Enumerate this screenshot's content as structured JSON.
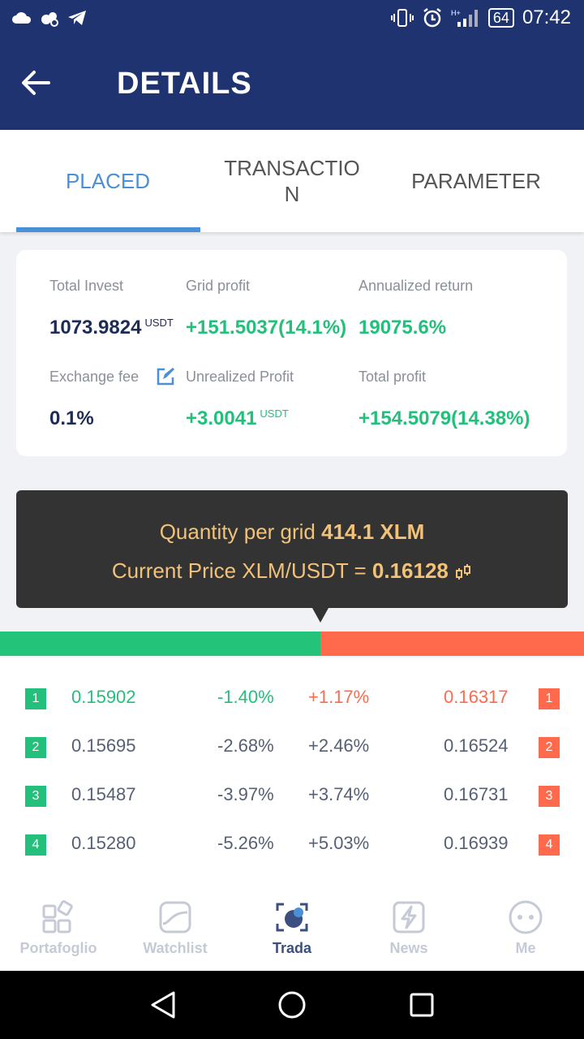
{
  "status_bar": {
    "battery": "64",
    "time": "07:42"
  },
  "header": {
    "title": "DETAILS"
  },
  "tabs": [
    {
      "label": "PLACED",
      "active": true
    },
    {
      "label": "TRANSACTIO\nN",
      "active": false
    },
    {
      "label": "PARAMETER",
      "active": false
    }
  ],
  "stats": {
    "total_invest_label": "Total Invest",
    "total_invest_value": "1073.9824",
    "total_invest_unit": "USDT",
    "grid_profit_label": "Grid profit",
    "grid_profit_value": "+151.5037(14.1%)",
    "annualized_label": "Annualized return",
    "annualized_value": "19075.6%",
    "fee_label": "Exchange fee",
    "fee_value": "0.1%",
    "unrealized_label": "Unrealized Profit",
    "unrealized_value": "+3.0041",
    "unrealized_unit": "USDT",
    "total_profit_label": "Total profit",
    "total_profit_value": "+154.5079(14.38%)"
  },
  "tooltip": {
    "qty_label": "Quantity per grid",
    "qty_value": "414.1 XLM",
    "price_label": "Current Price  XLM/USDT =",
    "price_value": "0.16128"
  },
  "split_ratio_green": 0.549,
  "orders": [
    {
      "n": "1",
      "buy_price": "0.15902",
      "buy_pct": "-1.40%",
      "sell_pct": "+1.17%",
      "sell_price": "0.16317",
      "highlight": true
    },
    {
      "n": "2",
      "buy_price": "0.15695",
      "buy_pct": "-2.68%",
      "sell_pct": "+2.46%",
      "sell_price": "0.16524",
      "highlight": false
    },
    {
      "n": "3",
      "buy_price": "0.15487",
      "buy_pct": "-3.97%",
      "sell_pct": "+3.74%",
      "sell_price": "0.16731",
      "highlight": false
    },
    {
      "n": "4",
      "buy_price": "0.15280",
      "buy_pct": "-5.26%",
      "sell_pct": "+5.03%",
      "sell_price": "0.16939",
      "highlight": false
    }
  ],
  "bottom_nav": [
    {
      "label": "Portafoglio",
      "icon": "portfolio-icon",
      "active": false
    },
    {
      "label": "Watchlist",
      "icon": "watchlist-icon",
      "active": false
    },
    {
      "label": "Trada",
      "icon": "trade-icon",
      "active": true
    },
    {
      "label": "News",
      "icon": "news-icon",
      "active": false
    },
    {
      "label": "Me",
      "icon": "me-icon",
      "active": false
    }
  ],
  "colors": {
    "header": "#1f3371",
    "tab_active": "#4a90d9",
    "green": "#23c07c",
    "red": "#ff6a4d",
    "tooltip_text": "#f2c278"
  }
}
